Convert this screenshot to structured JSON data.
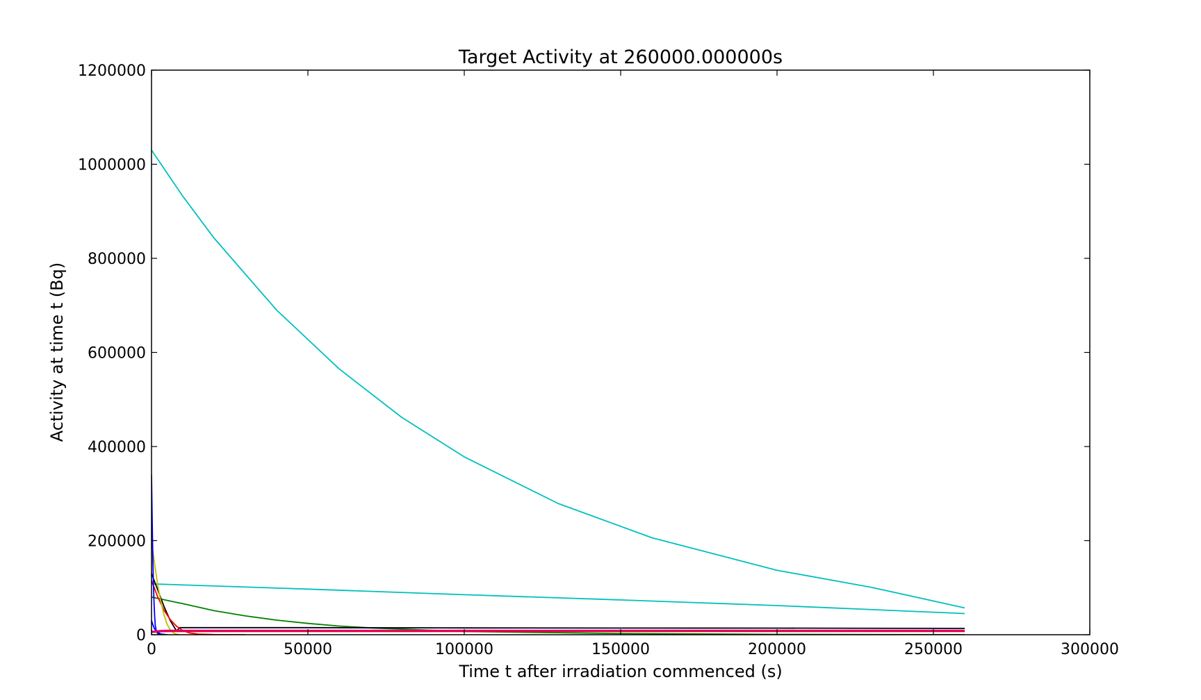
{
  "chart_data": {
    "type": "line",
    "title": "Target Activity at 260000.000000s",
    "xlabel": "Time t after irradiation commenced (s)",
    "ylabel": "Activity at time t (Bq)",
    "xlim": [
      0,
      300000
    ],
    "ylim": [
      0,
      1200000
    ],
    "xticks": [
      0,
      50000,
      100000,
      150000,
      200000,
      250000,
      300000
    ],
    "yticks": [
      0,
      200000,
      400000,
      600000,
      800000,
      1000000,
      1200000
    ],
    "grid": false,
    "legend": "none",
    "series": [
      {
        "color": "#00bfbf",
        "x": [
          0,
          10000,
          20000,
          40000,
          60000,
          80000,
          100000,
          130000,
          160000,
          200000,
          230000,
          260000
        ],
        "y": [
          1030000,
          932000,
          843000,
          690000,
          565000,
          462000,
          378000,
          279000,
          206000,
          137000,
          101000,
          57000
        ]
      },
      {
        "color": "#00bfbf",
        "x": [
          0,
          50000,
          100000,
          150000,
          200000,
          260000
        ],
        "y": [
          108000,
          97000,
          85000,
          74000,
          62000,
          45000
        ]
      },
      {
        "color": "#008000",
        "x": [
          0,
          10000,
          20000,
          30000,
          40000,
          50000,
          60000,
          70000,
          100000,
          150000,
          200000,
          260000
        ],
        "y": [
          80000,
          66000,
          51000,
          40000,
          31000,
          24000,
          18500,
          14500,
          7000,
          2500,
          800,
          200
        ]
      },
      {
        "color": "#000000",
        "x": [
          0,
          2000,
          4000,
          6000,
          8000,
          9000,
          50000,
          100000,
          200000,
          260000
        ],
        "y": [
          130000,
          95000,
          60000,
          30000,
          8000,
          15000,
          15000,
          14500,
          14000,
          13500
        ]
      },
      {
        "color": "#ff0000",
        "x": [
          0,
          2000,
          4000,
          6000,
          8000,
          10000,
          12000,
          15000,
          20000,
          30000
        ],
        "y": [
          115000,
          80000,
          52000,
          32000,
          18000,
          9000,
          4000,
          1200,
          300,
          0
        ]
      },
      {
        "color": "#bfbf00",
        "x": [
          0,
          1000,
          2000,
          3000,
          4000,
          5000,
          6000,
          7000,
          8000,
          9000
        ],
        "y": [
          200000,
          150000,
          105000,
          70000,
          42000,
          22000,
          10000,
          4000,
          1000,
          0
        ]
      },
      {
        "color": "#0000ff",
        "x": [
          0,
          200,
          400,
          600,
          800,
          1000,
          1200,
          1500,
          2000,
          3000
        ],
        "y": [
          340000,
          250000,
          170000,
          110000,
          70000,
          40000,
          20000,
          8000,
          2000,
          0
        ]
      },
      {
        "color": "#0000ff",
        "x": [
          0,
          500,
          1000,
          2000,
          3000,
          5000
        ],
        "y": [
          30000,
          20000,
          12000,
          5000,
          1500,
          0
        ]
      },
      {
        "color": "#bf00bf",
        "x": [
          0,
          3000,
          5000,
          260000
        ],
        "y": [
          7000,
          9000,
          9500,
          9500
        ]
      },
      {
        "color": "#ff0000",
        "x": [
          0,
          3000,
          5000,
          260000
        ],
        "y": [
          5000,
          6500,
          7000,
          7000
        ]
      }
    ]
  }
}
